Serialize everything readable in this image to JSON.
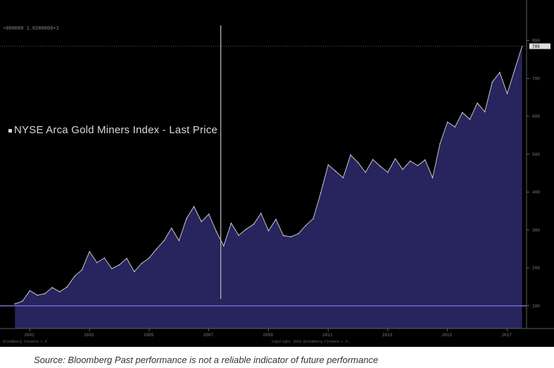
{
  "header": {
    "info_text": "+000089 1.0200000+1"
  },
  "legend": {
    "label": "NYSE Arca Gold Miners Index - Last Price",
    "line_color": "#c8c8c8",
    "fill_color": "#27245e"
  },
  "footer": {
    "left_text": "Bloomberg Finance L.P.",
    "center_text": "Copyright 2018 Bloomberg Finance L.P.",
    "right_text": ""
  },
  "source_text": "Source: Bloomberg Past performance is not a reliable indicator of future performance",
  "colors": {
    "background": "#000000",
    "area": "#27245e",
    "line": "#c8c8c8",
    "crosshair": "#bbbbbb",
    "baseline": "#6e6bd0"
  },
  "chart_data": {
    "type": "area",
    "title": "",
    "xlabel": "",
    "ylabel": "",
    "series": [
      {
        "name": "NYSE Arca Gold Miners Index - Last Price",
        "x": [
          2001.0,
          2001.25,
          2001.5,
          2001.75,
          2002.0,
          2002.25,
          2002.5,
          2002.75,
          2003.0,
          2003.25,
          2003.5,
          2003.75,
          2004.0,
          2004.25,
          2004.5,
          2004.75,
          2005.0,
          2005.25,
          2005.5,
          2005.75,
          2006.0,
          2006.25,
          2006.5,
          2006.75,
          2007.0,
          2007.25,
          2007.5,
          2007.75,
          2008.0,
          2008.25,
          2008.5,
          2008.75,
          2009.0,
          2009.25,
          2009.5,
          2009.75,
          2010.0,
          2010.25,
          2010.5,
          2010.75,
          2011.0,
          2011.25,
          2011.5,
          2011.75,
          2012.0,
          2012.25,
          2012.5,
          2012.75,
          2013.0,
          2013.25,
          2013.5,
          2013.75,
          2014.0,
          2014.25,
          2014.5,
          2014.75,
          2015.0,
          2015.25,
          2015.5,
          2015.75,
          2016.0,
          2016.25,
          2016.5,
          2016.75,
          2017.0,
          2017.25,
          2017.5,
          2017.75,
          2018.0
        ],
        "values": [
          105,
          112,
          140,
          128,
          132,
          148,
          137,
          150,
          178,
          195,
          243,
          214,
          226,
          198,
          208,
          225,
          190,
          212,
          226,
          250,
          272,
          305,
          272,
          330,
          362,
          322,
          342,
          296,
          258,
          318,
          286,
          302,
          315,
          344,
          298,
          328,
          285,
          282,
          290,
          312,
          330,
          398,
          472,
          455,
          438,
          498,
          478,
          452,
          486,
          468,
          452,
          488,
          460,
          482,
          470,
          485,
          438,
          528,
          585,
          572,
          610,
          592,
          635,
          612,
          690,
          716,
          660,
          722,
          785
        ]
      }
    ],
    "xlim": [
      2000.5,
      2018.15
    ],
    "ylim": [
      40,
      840
    ],
    "x_ticks": [
      {
        "value": 2001.5,
        "label": "2001"
      },
      {
        "value": 2003.5,
        "label": "2003"
      },
      {
        "value": 2005.5,
        "label": "2005"
      },
      {
        "value": 2007.5,
        "label": "2007"
      },
      {
        "value": 2009.5,
        "label": "2009"
      },
      {
        "value": 2011.5,
        "label": "2011"
      },
      {
        "value": 2013.5,
        "label": "2013"
      },
      {
        "value": 2015.5,
        "label": "2015"
      },
      {
        "value": 2017.5,
        "label": "2017"
      }
    ],
    "y_ticks": [
      {
        "value": 100,
        "label": "100"
      },
      {
        "value": 200,
        "label": "200"
      },
      {
        "value": 300,
        "label": "300"
      },
      {
        "value": 400,
        "label": "400"
      },
      {
        "value": 500,
        "label": "500"
      },
      {
        "value": 600,
        "label": "600"
      },
      {
        "value": 700,
        "label": "700"
      },
      {
        "value": 800,
        "label": "800"
      }
    ],
    "last_value_label": "785",
    "crosshair_x": 2007.9,
    "reference_level": 100,
    "grid": false,
    "legend_position": "upper-left"
  }
}
